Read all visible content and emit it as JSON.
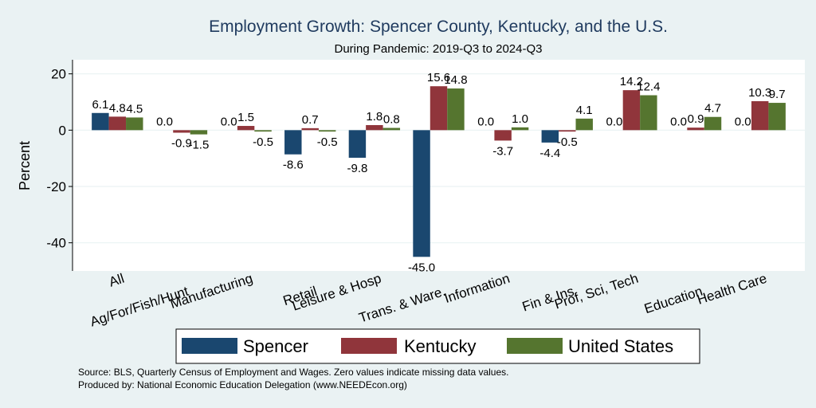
{
  "chart_data": {
    "type": "bar",
    "title": "Employment Growth: Spencer County, Kentucky, and the U.S.",
    "subtitle": "During Pandemic: 2019-Q3 to 2024-Q3",
    "xlabel": "",
    "ylabel": "Percent",
    "ylim": [
      -50,
      25
    ],
    "yticks": [
      20,
      0,
      -20,
      -40
    ],
    "grid": true,
    "legend_position": "bottom",
    "categories": [
      "All",
      "Ag/For/Fish/Hunt",
      "Manufacturing",
      "Retail",
      "Leisure & Hosp",
      "Trans. & Ware.",
      "Information",
      "Fin & Ins",
      "Prof, Sci, Tech",
      "Education",
      "Health Care"
    ],
    "series": [
      {
        "name": "Spencer",
        "color": "#1a476f",
        "values": [
          6.1,
          0.0,
          0.0,
          -8.6,
          -9.8,
          -45.0,
          0.0,
          -4.4,
          0.0,
          0.0,
          0.0
        ]
      },
      {
        "name": "Kentucky",
        "color": "#90353b",
        "values": [
          4.8,
          -0.9,
          1.5,
          0.7,
          1.8,
          15.6,
          -3.7,
          -0.5,
          14.2,
          0.9,
          10.3
        ]
      },
      {
        "name": "United States",
        "color": "#55752f",
        "values": [
          4.5,
          -1.5,
          -0.5,
          -0.5,
          0.8,
          14.8,
          1.0,
          4.1,
          12.4,
          4.7,
          9.7
        ]
      }
    ]
  },
  "notes": {
    "source": "Source: BLS, Quarterly Census of Employment and Wages. Zero values indicate missing data values.",
    "produced": "Produced by: National Economic Education Delegation (www.NEEDEcon.org)"
  }
}
